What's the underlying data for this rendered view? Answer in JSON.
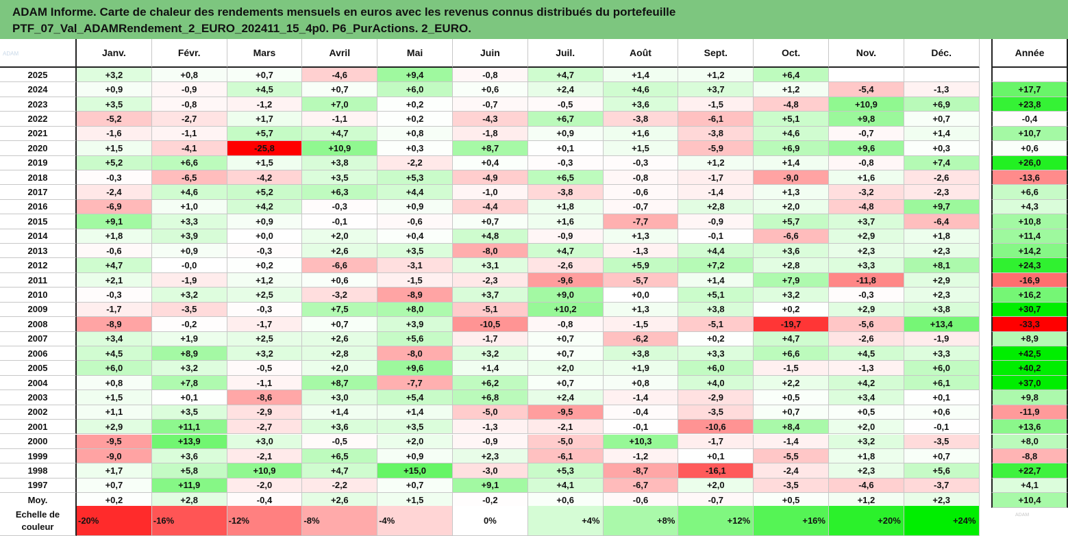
{
  "title_line1": "ADAM Informe. Carte de chaleur des rendements mensuels en euros avec les revenus connus distribués du portefeuille",
  "title_line2": "PTF_07_Val_ADAMRendement_2_EURO_202411_15_4p0. P6_PurActions. 2_EURO.",
  "chart_data": {
    "type": "heatmap",
    "title": "ADAM Informe. Carte de chaleur des rendements mensuels en euros avec les revenus connus distribués du portefeuille PTF_07_Val_ADAMRendement_2_EURO_202411_15_4p0. P6_PurActions. 2_EURO.",
    "months": [
      "Janv.",
      "Févr.",
      "Mars",
      "Avril",
      "Mai",
      "Juin",
      "Juil.",
      "Août",
      "Sept.",
      "Oct.",
      "Nov.",
      "Déc."
    ],
    "annual_header": "Année",
    "rows": [
      {
        "label": "2025",
        "values": [
          "+3,2",
          "+0,8",
          "+0,7",
          "-4,6",
          "+9,4",
          "-0,8",
          "+4,7",
          "+1,4",
          "+1,2",
          "+6,4",
          "",
          ""
        ],
        "annual": ""
      },
      {
        "label": "2024",
        "values": [
          "+0,9",
          "-0,9",
          "+4,5",
          "+0,7",
          "+6,0",
          "+0,6",
          "+2,4",
          "+4,6",
          "+3,7",
          "+1,2",
          "-5,4",
          "-1,3"
        ],
        "annual": "+17,7"
      },
      {
        "label": "2023",
        "values": [
          "+3,5",
          "-0,8",
          "-1,2",
          "+7,0",
          "+0,2",
          "-0,7",
          "-0,5",
          "+3,6",
          "-1,5",
          "-4,8",
          "+10,9",
          "+6,9"
        ],
        "annual": "+23,8"
      },
      {
        "label": "2022",
        "values": [
          "-5,2",
          "-2,7",
          "+1,7",
          "-1,1",
          "+0,2",
          "-4,3",
          "+6,7",
          "-3,8",
          "-6,1",
          "+5,1",
          "+9,8",
          "+0,7"
        ],
        "annual": "-0,4"
      },
      {
        "label": "2021",
        "values": [
          "-1,6",
          "-1,1",
          "+5,7",
          "+4,7",
          "+0,8",
          "-1,8",
          "+0,9",
          "+1,6",
          "-3,8",
          "+4,6",
          "-0,7",
          "+1,4"
        ],
        "annual": "+10,7"
      },
      {
        "label": "2020",
        "values": [
          "+1,5",
          "-4,1",
          "-25,8",
          "+10,9",
          "+0,3",
          "+8,7",
          "+0,1",
          "+1,5",
          "-5,9",
          "+6,9",
          "+9,6",
          "+0,3"
        ],
        "annual": "+0,6"
      },
      {
        "label": "2019",
        "values": [
          "+5,2",
          "+6,6",
          "+1,5",
          "+3,8",
          "-2,2",
          "+0,4",
          "-0,3",
          "-0,3",
          "+1,2",
          "+1,4",
          "-0,8",
          "+7,4"
        ],
        "annual": "+26,0"
      },
      {
        "label": "2018",
        "values": [
          "-0,3",
          "-6,5",
          "-4,2",
          "+3,5",
          "+5,3",
          "-4,9",
          "+6,5",
          "-0,8",
          "-1,7",
          "-9,0",
          "+1,6",
          "-2,6"
        ],
        "annual": "-13,6"
      },
      {
        "label": "2017",
        "values": [
          "-2,4",
          "+4,6",
          "+5,2",
          "+6,3",
          "+4,4",
          "-1,0",
          "-3,8",
          "-0,6",
          "-1,4",
          "+1,3",
          "-3,2",
          "-2,3"
        ],
        "annual": "+6,6"
      },
      {
        "label": "2016",
        "values": [
          "-6,9",
          "+1,0",
          "+4,2",
          "-0,3",
          "+0,9",
          "-4,4",
          "+1,8",
          "-0,7",
          "+2,8",
          "+2,0",
          "-4,8",
          "+9,7"
        ],
        "annual": "+4,3"
      },
      {
        "label": "2015",
        "values": [
          "+9,1",
          "+3,3",
          "+0,9",
          "-0,1",
          "-0,6",
          "+0,7",
          "+1,6",
          "-7,7",
          "-0,9",
          "+5,7",
          "+3,7",
          "-6,4"
        ],
        "annual": "+10,8"
      },
      {
        "label": "2014",
        "values": [
          "+1,8",
          "+3,9",
          "+0,0",
          "+2,0",
          "+0,4",
          "+4,8",
          "-0,9",
          "+1,3",
          "-0,1",
          "-6,6",
          "+2,9",
          "+1,8"
        ],
        "annual": "+11,4"
      },
      {
        "label": "2013",
        "values": [
          "-0,6",
          "+0,9",
          "-0,3",
          "+2,6",
          "+3,5",
          "-8,0",
          "+4,7",
          "-1,3",
          "+4,4",
          "+3,6",
          "+2,3",
          "+2,3"
        ],
        "annual": "+14,2"
      },
      {
        "label": "2012",
        "values": [
          "+4,7",
          "-0,0",
          "+0,2",
          "-6,6",
          "-3,1",
          "+3,1",
          "-2,6",
          "+5,9",
          "+7,2",
          "+2,8",
          "+3,3",
          "+8,1"
        ],
        "annual": "+24,3"
      },
      {
        "label": "2011",
        "values": [
          "+2,1",
          "-1,9",
          "+1,2",
          "+0,6",
          "-1,5",
          "-2,3",
          "-9,6",
          "-5,7",
          "+1,4",
          "+7,9",
          "-11,8",
          "+2,9"
        ],
        "annual": "-16,9"
      },
      {
        "label": "2010",
        "values": [
          "-0,3",
          "+3,2",
          "+2,5",
          "-3,2",
          "-8,9",
          "+3,7",
          "+9,0",
          "+0,0",
          "+5,1",
          "+3,2",
          "-0,3",
          "+2,3"
        ],
        "annual": "+16,2"
      },
      {
        "label": "2009",
        "values": [
          "-1,7",
          "-3,5",
          "-0,3",
          "+7,5",
          "+8,0",
          "-5,1",
          "+10,2",
          "+1,3",
          "+3,8",
          "+0,2",
          "+2,9",
          "+3,8"
        ],
        "annual": "+30,7"
      },
      {
        "label": "2008",
        "values": [
          "-8,9",
          "-0,2",
          "-1,7",
          "+0,7",
          "+3,9",
          "-10,5",
          "-0,8",
          "-1,5",
          "-5,1",
          "-19,7",
          "-5,6",
          "+13,4"
        ],
        "annual": "-33,3"
      },
      {
        "label": "2007",
        "values": [
          "+3,4",
          "+1,9",
          "+2,5",
          "+2,6",
          "+5,6",
          "-1,7",
          "+0,7",
          "-6,2",
          "+0,2",
          "+4,7",
          "-2,6",
          "-1,9"
        ],
        "annual": "+8,9"
      },
      {
        "label": "2006",
        "values": [
          "+4,5",
          "+8,9",
          "+3,2",
          "+2,8",
          "-8,0",
          "+3,2",
          "+0,7",
          "+3,8",
          "+3,3",
          "+6,6",
          "+4,5",
          "+3,3"
        ],
        "annual": "+42,5"
      },
      {
        "label": "2005",
        "values": [
          "+6,0",
          "+3,2",
          "-0,5",
          "+2,0",
          "+9,6",
          "+1,4",
          "+2,0",
          "+1,9",
          "+6,0",
          "-1,5",
          "-1,3",
          "+6,0"
        ],
        "annual": "+40,2"
      },
      {
        "label": "2004",
        "values": [
          "+0,8",
          "+7,8",
          "-1,1",
          "+8,7",
          "-7,7",
          "+6,2",
          "+0,7",
          "+0,8",
          "+4,0",
          "+2,2",
          "+4,2",
          "+6,1"
        ],
        "annual": "+37,0"
      },
      {
        "label": "2003",
        "values": [
          "+1,5",
          "+0,1",
          "-8,6",
          "+3,0",
          "+5,4",
          "+6,8",
          "+2,4",
          "-1,4",
          "-2,9",
          "+0,5",
          "+3,4",
          "+0,1"
        ],
        "annual": "+9,8"
      },
      {
        "label": "2002",
        "values": [
          "+1,1",
          "+3,5",
          "-2,9",
          "+1,4",
          "+1,4",
          "-5,0",
          "-9,5",
          "-0,4",
          "-3,5",
          "+0,7",
          "+0,5",
          "+0,6"
        ],
        "annual": "-11,9"
      },
      {
        "label": "2001",
        "values": [
          "+2,9",
          "+11,1",
          "-2,7",
          "+3,6",
          "+3,5",
          "-1,3",
          "-2,1",
          "-0,1",
          "-10,6",
          "+8,4",
          "+2,0",
          "-0,1"
        ],
        "annual": "+13,6"
      },
      {
        "label": "2000",
        "values": [
          "-9,5",
          "+13,9",
          "+3,0",
          "-0,5",
          "+2,0",
          "-0,9",
          "-5,0",
          "+10,3",
          "-1,7",
          "-1,4",
          "+3,2",
          "-3,5"
        ],
        "annual": "+8,0"
      },
      {
        "label": "1999",
        "values": [
          "-9,0",
          "+3,6",
          "-2,1",
          "+6,5",
          "+0,9",
          "+2,3",
          "-6,1",
          "-1,2",
          "+0,1",
          "-5,5",
          "+1,8",
          "+0,7"
        ],
        "annual": "-8,8"
      },
      {
        "label": "1998",
        "values": [
          "+1,7",
          "+5,8",
          "+10,9",
          "+4,7",
          "+15,0",
          "-3,0",
          "+5,3",
          "-8,7",
          "-16,1",
          "-2,4",
          "+2,3",
          "+5,6"
        ],
        "annual": "+22,7"
      },
      {
        "label": "1997",
        "values": [
          "+0,7",
          "+11,9",
          "-2,0",
          "-2,2",
          "+0,7",
          "+9,1",
          "+4,1",
          "-6,7",
          "+2,0",
          "-3,5",
          "-4,6",
          "-3,7"
        ],
        "annual": "+4,1"
      },
      {
        "label": "Moy.",
        "values": [
          "+0,2",
          "+2,8",
          "-0,4",
          "+2,6",
          "+1,5",
          "-0,2",
          "+0,6",
          "-0,6",
          "-0,7",
          "+0,5",
          "+1,2",
          "+2,3"
        ],
        "annual": "+10,4"
      }
    ],
    "scale_label_1": "Echelle de",
    "scale_label_2": "couleur",
    "scale": [
      {
        "label": "-20%",
        "value": -20
      },
      {
        "label": "-16%",
        "value": -16
      },
      {
        "label": "-12%",
        "value": -12
      },
      {
        "label": "-8%",
        "value": -8
      },
      {
        "label": "-4%",
        "value": -4
      },
      {
        "label": "0%",
        "value": 0
      },
      {
        "label": "+4%",
        "value": 4
      },
      {
        "label": "+8%",
        "value": 8
      },
      {
        "label": "+12%",
        "value": 12
      },
      {
        "label": "+16%",
        "value": 16
      },
      {
        "label": "+20%",
        "value": 20
      },
      {
        "label": "+24%",
        "value": 24
      }
    ],
    "colors": {
      "negative_max": "#ff0000",
      "neutral": "#ffffff",
      "positive_max": "#00ee00",
      "title_bg": "#7dc67f"
    }
  }
}
